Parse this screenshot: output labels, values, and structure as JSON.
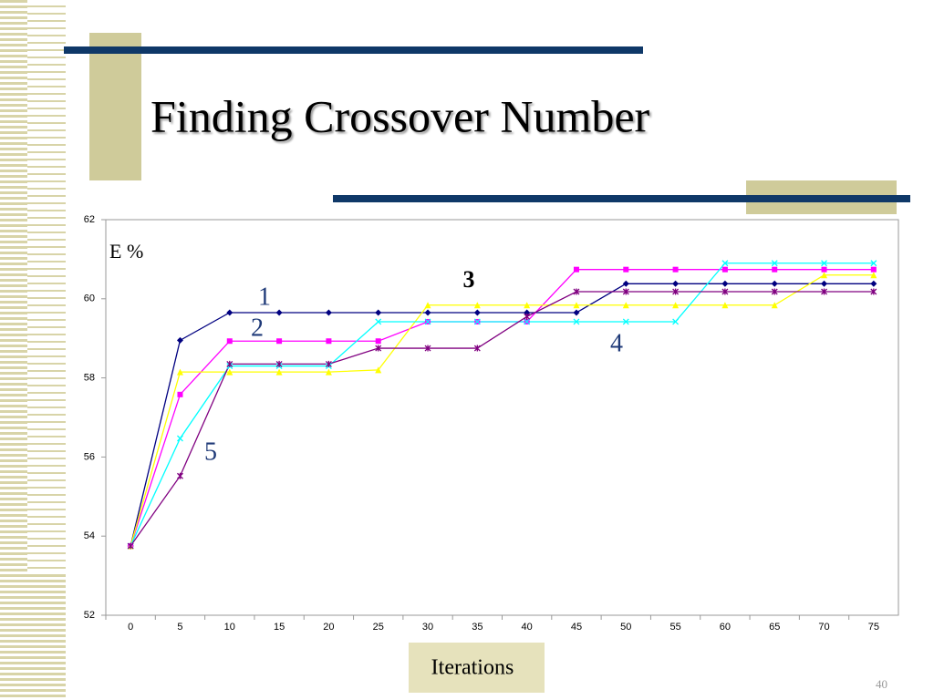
{
  "slide": {
    "title": "Finding Crossover Number",
    "page_number": "40"
  },
  "chart_data": {
    "type": "line",
    "y_label": "E %",
    "x_label": "Iterations",
    "categories": [
      "0",
      "5",
      "10",
      "15",
      "20",
      "25",
      "30",
      "35",
      "40",
      "45",
      "50",
      "55",
      "60",
      "65",
      "70",
      "75"
    ],
    "ylim": [
      52,
      62
    ],
    "yticks": [
      52,
      54,
      56,
      58,
      60,
      62
    ],
    "grid": false,
    "series": [
      {
        "name": "1",
        "color": "#000080",
        "marker": "diamond",
        "values": [
          53.75,
          58.95,
          59.65,
          59.65,
          59.65,
          59.65,
          59.65,
          59.65,
          59.65,
          59.65,
          60.38,
          60.38,
          60.38,
          60.38,
          60.38,
          60.38
        ]
      },
      {
        "name": "2",
        "color": "#ff00ff",
        "marker": "square",
        "values": [
          53.75,
          57.58,
          58.93,
          58.93,
          58.93,
          58.93,
          59.42,
          59.42,
          59.42,
          60.74,
          60.74,
          60.74,
          60.74,
          60.74,
          60.74,
          60.74
        ]
      },
      {
        "name": "3",
        "color": "#ffff00",
        "marker": "triangle",
        "values": [
          53.75,
          58.15,
          58.15,
          58.15,
          58.15,
          58.2,
          59.84,
          59.84,
          59.84,
          59.84,
          59.84,
          59.84,
          59.84,
          59.84,
          60.6,
          60.6
        ]
      },
      {
        "name": "4",
        "color": "#00ffff",
        "marker": "x",
        "values": [
          53.75,
          56.47,
          58.3,
          58.3,
          58.3,
          59.42,
          59.42,
          59.42,
          59.42,
          59.42,
          59.42,
          59.42,
          60.9,
          60.9,
          60.9,
          60.9
        ]
      },
      {
        "name": "5",
        "color": "#800080",
        "marker": "star",
        "values": [
          53.75,
          55.52,
          58.35,
          58.35,
          58.35,
          58.75,
          58.75,
          58.75,
          59.55,
          60.18,
          60.18,
          60.18,
          60.18,
          60.18,
          60.18,
          60.18
        ]
      }
    ]
  }
}
